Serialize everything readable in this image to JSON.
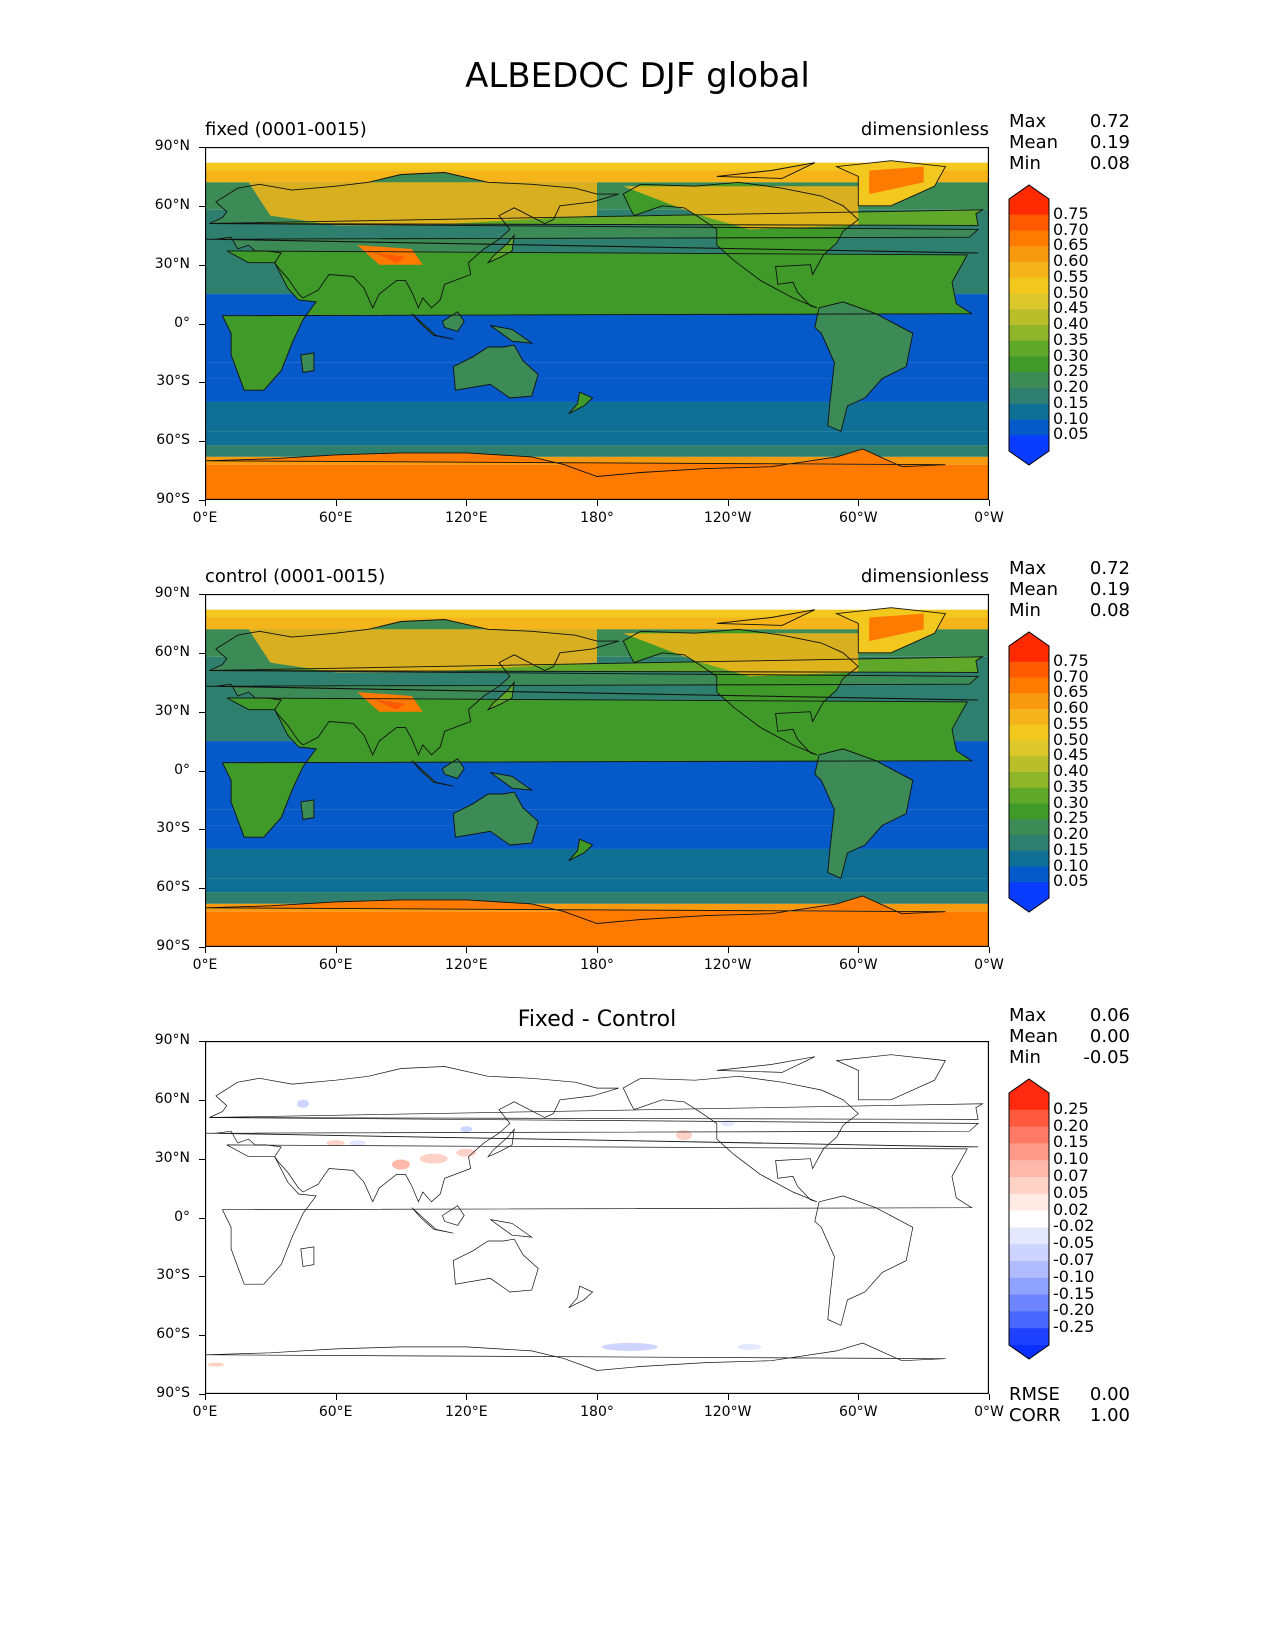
{
  "title": "ALBEDOC DJF global",
  "lat_ticks": [
    "90°N",
    "60°N",
    "30°N",
    "0°",
    "30°S",
    "60°S",
    "90°S"
  ],
  "lon_ticks": [
    "0°E",
    "60°E",
    "120°E",
    "180°",
    "120°W",
    "60°W",
    "0°W"
  ],
  "panels": [
    {
      "name": "fixed",
      "title_left": "fixed (0001-0015)",
      "title_right": "dimensionless",
      "stats": [
        {
          "label": "Max",
          "value": "0.72"
        },
        {
          "label": "Mean",
          "value": "0.19"
        },
        {
          "label": "Min",
          "value": "0.08"
        }
      ],
      "colorbar": {
        "labels": [
          "0.75",
          "0.70",
          "0.65",
          "0.60",
          "0.55",
          "0.50",
          "0.45",
          "0.40",
          "0.35",
          "0.30",
          "0.25",
          "0.20",
          "0.15",
          "0.10",
          "0.05"
        ],
        "colors": [
          "#ff2a00",
          "#ff5a00",
          "#ff7a00",
          "#f79a10",
          "#f5b51a",
          "#f2c81e",
          "#dcc82a",
          "#b8bf2a",
          "#8fb52a",
          "#5fa82a",
          "#3f9a2a",
          "#3c8a55",
          "#2f7f6f",
          "#106f95",
          "#0659c8",
          "#0a3cff"
        ],
        "top_color": "#ff2a00",
        "bottom_color": "#0a3cff"
      }
    },
    {
      "name": "control",
      "title_left": "control (0001-0015)",
      "title_right": "dimensionless",
      "stats": [
        {
          "label": "Max",
          "value": "0.72"
        },
        {
          "label": "Mean",
          "value": "0.19"
        },
        {
          "label": "Min",
          "value": "0.08"
        }
      ],
      "colorbar": {
        "labels": [
          "0.75",
          "0.70",
          "0.65",
          "0.60",
          "0.55",
          "0.50",
          "0.45",
          "0.40",
          "0.35",
          "0.30",
          "0.25",
          "0.20",
          "0.15",
          "0.10",
          "0.05"
        ],
        "colors": [
          "#ff2a00",
          "#ff5a00",
          "#ff7a00",
          "#f79a10",
          "#f5b51a",
          "#f2c81e",
          "#dcc82a",
          "#b8bf2a",
          "#8fb52a",
          "#5fa82a",
          "#3f9a2a",
          "#3c8a55",
          "#2f7f6f",
          "#106f95",
          "#0659c8",
          "#0a3cff"
        ],
        "top_color": "#ff2a00",
        "bottom_color": "#0a3cff"
      }
    },
    {
      "name": "difference",
      "title_center": "Fixed - Control",
      "stats": [
        {
          "label": "Max",
          "value": "0.06"
        },
        {
          "label": "Mean",
          "value": "0.00"
        },
        {
          "label": "Min",
          "value": "-0.05"
        }
      ],
      "extra_stats": [
        {
          "label": "RMSE",
          "value": "0.00"
        },
        {
          "label": "CORR",
          "value": "1.00"
        }
      ],
      "colorbar": {
        "labels": [
          "0.25",
          "0.20",
          "0.15",
          "0.10",
          "0.07",
          "0.05",
          "0.02",
          "-0.02",
          "-0.05",
          "-0.07",
          "-0.10",
          "-0.15",
          "-0.20",
          "-0.25"
        ],
        "colors": [
          "#ff2a10",
          "#ff5a40",
          "#ff7a66",
          "#ff9a8a",
          "#ffb8aa",
          "#ffd2c8",
          "#ffeae4",
          "#ffffff",
          "#e4e8ff",
          "#ccd4ff",
          "#b0bcff",
          "#8fa2ff",
          "#6d86ff",
          "#4a68ff",
          "#1e40ff"
        ],
        "top_color": "#ff2a10",
        "bottom_color": "#0a30ff"
      }
    }
  ]
}
